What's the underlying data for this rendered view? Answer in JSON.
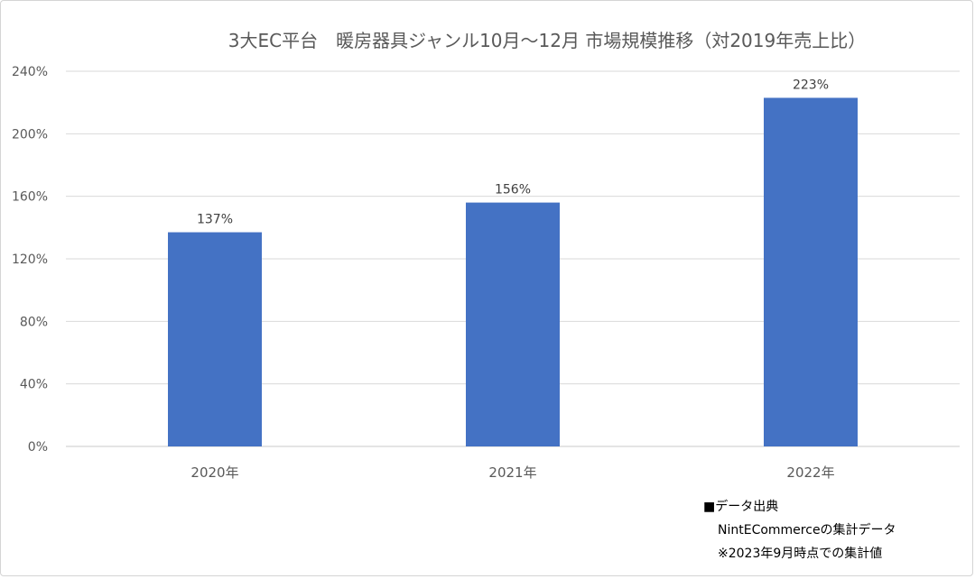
{
  "chart_data": {
    "type": "bar",
    "title": "3大EC平台　暖房器具ジャンル10月〜12月 市場規模推移（対2019年売上比）",
    "categories": [
      "2020年",
      "2021年",
      "2022年"
    ],
    "values": [
      137,
      156,
      223
    ],
    "value_labels": [
      "137%",
      "156%",
      "223%"
    ],
    "y_ticks": [
      "0%",
      "40%",
      "80%",
      "120%",
      "160%",
      "200%",
      "240%"
    ],
    "ylim": [
      0,
      240
    ],
    "grid": true,
    "bar_color": "#4472c4",
    "xlabel": "",
    "ylabel": ""
  },
  "source": {
    "line1": "■データ出典",
    "line2": "NintECommerceの集計データ",
    "line3": "※2023年9月時点での集計値"
  }
}
